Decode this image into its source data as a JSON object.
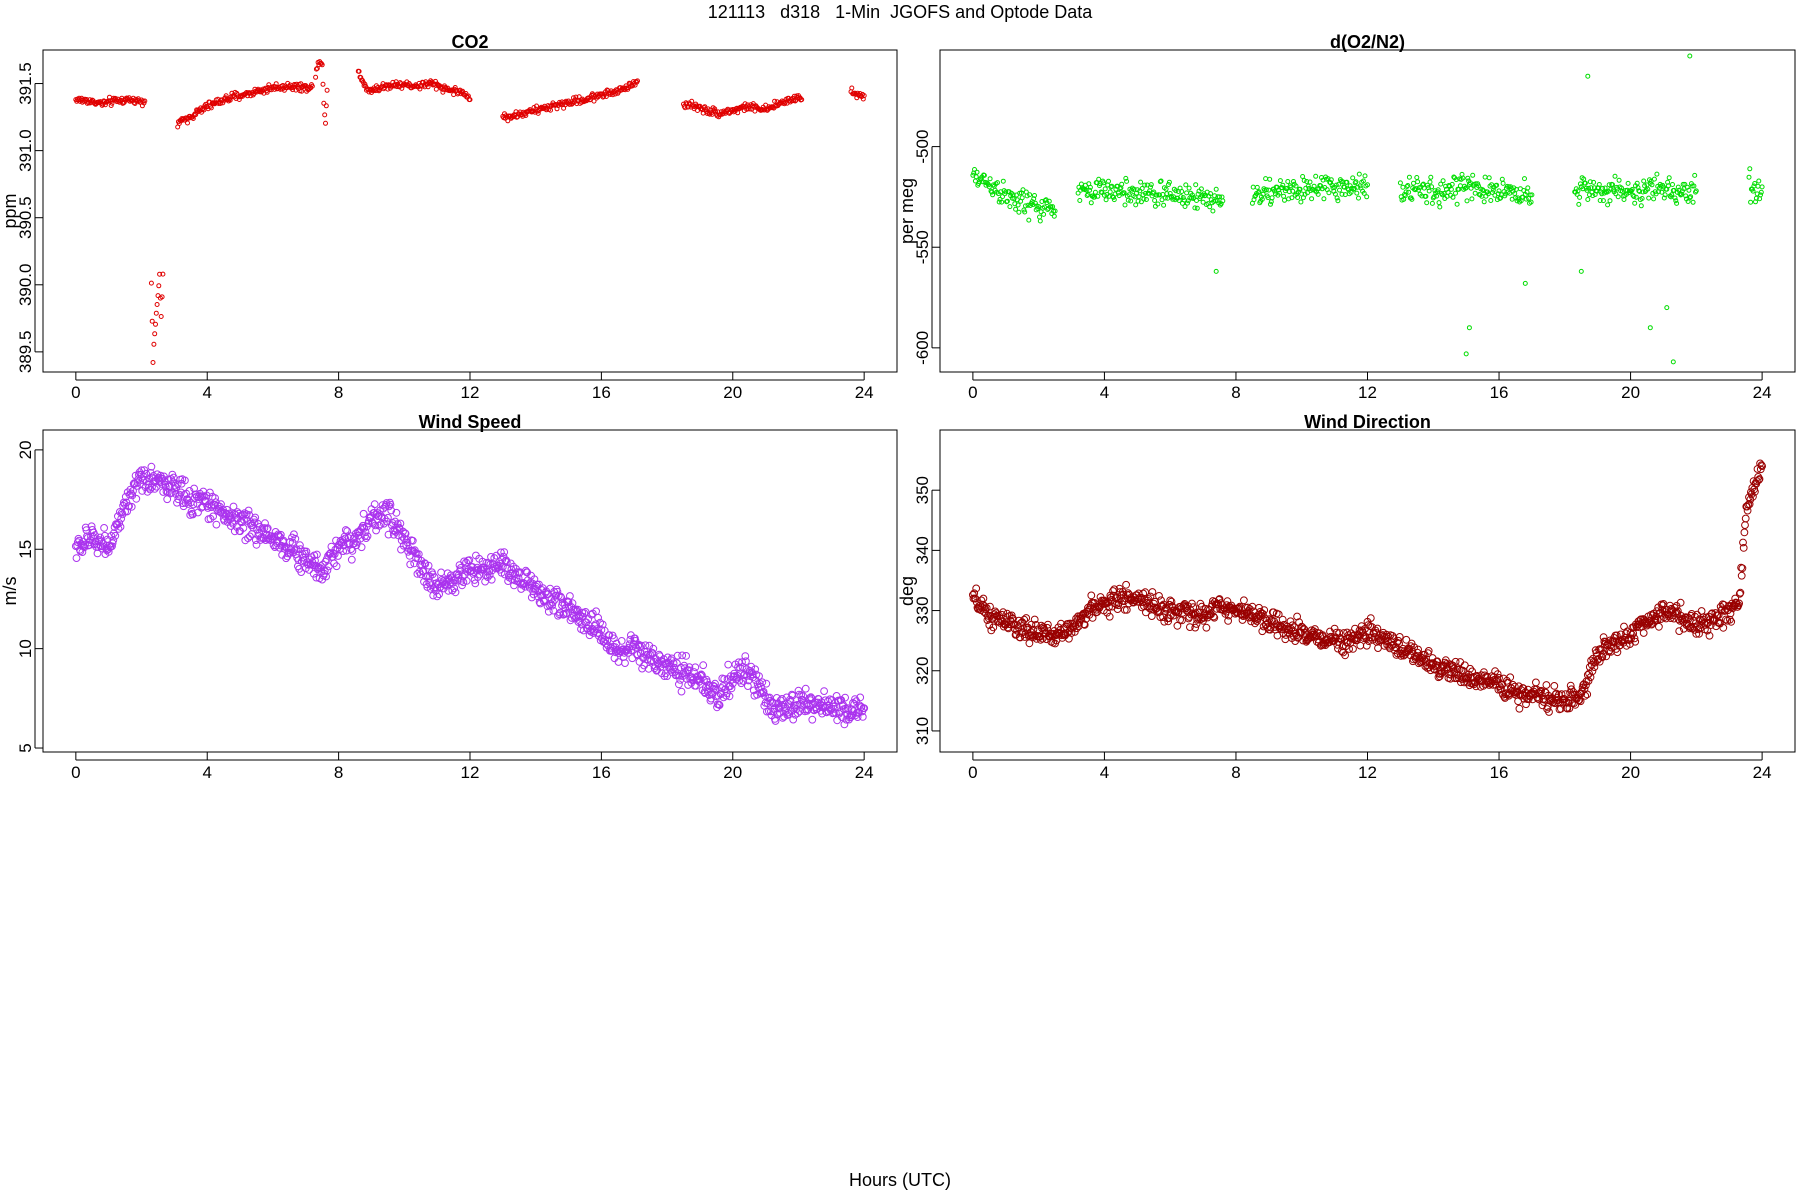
{
  "page": {
    "title": "121113   d318   1-Min  JGOFS and Optode Data",
    "x_caption": "Hours (UTC)"
  },
  "chart_data": [
    {
      "id": "co2",
      "type": "scatter",
      "title": "CO2",
      "ylabel": "ppm",
      "xlabel": "",
      "color": "#e00000",
      "marker": "small-circle",
      "xlim": [
        -1,
        25
      ],
      "ylim": [
        389.35,
        391.75
      ],
      "xticks": [
        0,
        4,
        8,
        12,
        16,
        20,
        24
      ],
      "yticks": [
        389.5,
        390.0,
        390.5,
        391.0,
        391.5
      ],
      "ytick_labels": [
        "389.5",
        "390.0",
        "390.5",
        "391.0",
        "391.5"
      ],
      "segments": [
        {
          "x": [
            0.0,
            0.4,
            0.8,
            1.2,
            1.6,
            2.0,
            2.1
          ],
          "y": [
            391.38,
            391.37,
            391.35,
            391.37,
            391.38,
            391.37,
            391.37
          ]
        },
        {
          "x": [
            2.3,
            2.35,
            2.4,
            2.45,
            2.5,
            2.55,
            2.6,
            2.65
          ],
          "y": [
            390.02,
            389.45,
            389.62,
            389.8,
            389.92,
            390.05,
            389.75,
            390.08
          ]
        },
        {
          "x": [
            3.1,
            3.6,
            4.0,
            4.5,
            5.0,
            5.5,
            6.0,
            6.5,
            7.0,
            7.2
          ],
          "y": [
            391.2,
            391.27,
            391.33,
            391.38,
            391.41,
            391.44,
            391.47,
            391.48,
            391.47,
            391.48
          ]
        },
        {
          "x": [
            7.3,
            7.4,
            7.5,
            7.55,
            7.6,
            7.65
          ],
          "y": [
            391.55,
            391.68,
            391.65,
            391.35,
            391.22,
            391.45
          ]
        },
        {
          "x": [
            8.6,
            8.9,
            9.3,
            9.8,
            10.3,
            10.8,
            11.3,
            11.8,
            12.0
          ],
          "y": [
            391.58,
            391.45,
            391.47,
            391.5,
            391.48,
            391.5,
            391.46,
            391.43,
            391.38
          ]
        },
        {
          "x": [
            13.0,
            13.5,
            14.0,
            14.5,
            15.0,
            15.5,
            16.0,
            16.5,
            17.0,
            17.1
          ],
          "y": [
            391.25,
            391.27,
            391.3,
            391.33,
            391.36,
            391.38,
            391.42,
            391.44,
            391.5,
            391.52
          ]
        },
        {
          "x": [
            18.5,
            19.0,
            19.5,
            20.0,
            20.5,
            21.0,
            21.5,
            22.0,
            22.1
          ],
          "y": [
            391.35,
            391.32,
            391.28,
            391.3,
            391.33,
            391.3,
            391.36,
            391.4,
            391.38
          ]
        },
        {
          "x": [
            23.6,
            23.8,
            24.0
          ],
          "y": [
            391.46,
            391.41,
            391.41
          ]
        }
      ],
      "noise": 0.04
    },
    {
      "id": "o2n2",
      "type": "scatter",
      "title": "d(O2/N2)",
      "ylabel": "per meg",
      "xlabel": "",
      "color": "#00dd00",
      "marker": "small-circle",
      "xlim": [
        -1,
        25
      ],
      "ylim": [
        -612,
        -452
      ],
      "xticks": [
        0,
        4,
        8,
        12,
        16,
        20,
        24
      ],
      "yticks": [
        -600,
        -550,
        -500
      ],
      "ytick_labels": [
        "-600",
        "-550",
        "-500"
      ],
      "segments": [
        {
          "x": [
            0.0,
            0.5,
            1.0,
            1.5,
            2.0,
            2.5
          ],
          "y": [
            -515,
            -518,
            -525,
            -528,
            -530,
            -532
          ]
        },
        {
          "x": [
            3.2,
            4.0,
            5.0,
            6.0,
            7.0,
            7.6
          ],
          "y": [
            -522,
            -522,
            -523,
            -524,
            -525,
            -527
          ]
        },
        {
          "x": [
            8.5,
            9.5,
            10.5,
            11.5,
            12.0
          ],
          "y": [
            -524,
            -522,
            -521,
            -520,
            -519
          ]
        },
        {
          "x": [
            13.0,
            14.0,
            15.0,
            16.0,
            17.0
          ],
          "y": [
            -521,
            -523,
            -520,
            -522,
            -524
          ]
        },
        {
          "x": [
            18.3,
            19.0,
            20.0,
            21.0,
            22.0
          ],
          "y": [
            -520,
            -522,
            -522,
            -522,
            -522
          ]
        },
        {
          "x": [
            23.6,
            23.8,
            24.0
          ],
          "y": [
            -517,
            -522,
            -520
          ]
        }
      ],
      "outliers": {
        "x": [
          15.1,
          15.0,
          18.7,
          21.3,
          21.1,
          21.8,
          16.8,
          7.4,
          20.6,
          18.5
        ],
        "y": [
          -590,
          -603,
          -465,
          -607,
          -580,
          -455,
          -568,
          -562,
          -590,
          -562
        ]
      },
      "noise": 9
    },
    {
      "id": "wind-speed",
      "type": "scatter",
      "title": "Wind Speed",
      "ylabel": "m/s",
      "xlabel": "",
      "color": "#aa33ee",
      "marker": "circle",
      "xlim": [
        -1,
        25
      ],
      "ylim": [
        4.8,
        21.0
      ],
      "xticks": [
        0,
        4,
        8,
        12,
        16,
        20,
        24
      ],
      "yticks": [
        5,
        10,
        15,
        20
      ],
      "ytick_labels": [
        "5",
        "10",
        "15",
        "20"
      ],
      "segments": [
        {
          "x": [
            0,
            0.5,
            1.0,
            1.5,
            2.0,
            2.5,
            3.0,
            3.5,
            4.0,
            5.0,
            6.0,
            7.0,
            7.5,
            8.0,
            8.5,
            9.0,
            9.5,
            10.0,
            10.5,
            11.0,
            12.0,
            13.0,
            14.0,
            15.0,
            16.0,
            16.5,
            17.0,
            18.0,
            19.0,
            19.5,
            20.0,
            20.5,
            21.0,
            21.5,
            22.0,
            23.0,
            24.0
          ],
          "y": [
            15.0,
            15.6,
            15.2,
            17.0,
            18.5,
            18.5,
            18.0,
            17.5,
            17.3,
            16.4,
            15.6,
            14.5,
            14.0,
            15.2,
            15.5,
            16.5,
            16.8,
            15.5,
            14.0,
            13.0,
            14.0,
            14.2,
            13.0,
            12.0,
            10.8,
            9.6,
            10.0,
            9.0,
            8.5,
            7.5,
            8.5,
            9.0,
            7.5,
            6.8,
            7.3,
            7.0,
            7.0
          ]
        }
      ],
      "noise": 0.7
    },
    {
      "id": "wind-direction",
      "type": "scatter",
      "title": "Wind Direction",
      "ylabel": "deg",
      "xlabel": "",
      "color": "#990000",
      "marker": "circle",
      "xlim": [
        -1,
        25
      ],
      "ylim": [
        306.5,
        360
      ],
      "xticks": [
        0,
        4,
        8,
        12,
        16,
        20,
        24
      ],
      "yticks": [
        310,
        320,
        330,
        340,
        350
      ],
      "ytick_labels": [
        "310",
        "320",
        "330",
        "340",
        "350"
      ],
      "segments": [
        {
          "x": [
            0,
            0.5,
            1.0,
            1.5,
            2.0,
            2.5,
            3.0,
            3.5,
            4.0,
            4.5,
            5.0,
            6.0,
            7.0,
            7.5,
            8.0,
            9.0,
            10.0,
            11.0,
            12.0,
            13.0,
            14.0,
            15.0,
            16.0,
            16.5,
            17.0,
            18.0,
            18.5,
            19.0,
            20.0,
            21.0,
            22.0,
            22.5,
            23.0,
            23.3,
            23.5,
            24.0
          ],
          "y": [
            332,
            329,
            328,
            327,
            326,
            326,
            327,
            330,
            331,
            332,
            332,
            330,
            329,
            331,
            330,
            328,
            326,
            325,
            326,
            324,
            321,
            319,
            318,
            316,
            316,
            315,
            316,
            323,
            326,
            330,
            328,
            328,
            330,
            331,
            346,
            354
          ]
        }
      ],
      "noise": 1.8
    }
  ]
}
